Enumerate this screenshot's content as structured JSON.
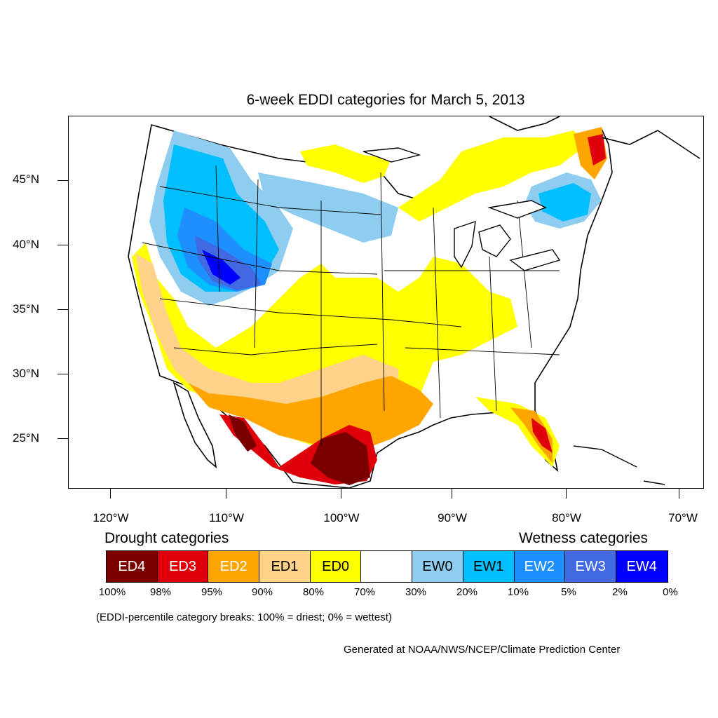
{
  "title": "6-week EDDI categories for March 5, 2013",
  "lat_labels": [
    "45°N",
    "40°N",
    "35°N",
    "30°N",
    "25°N"
  ],
  "lon_labels": [
    "120°W",
    "110°W",
    "100°W",
    "90°W",
    "80°W",
    "70°W"
  ],
  "legend": {
    "drought_heading": "Drought categories",
    "wetness_heading": "Wetness categories",
    "categories": [
      {
        "label": "ED4",
        "color": "#7a0000",
        "text_color": "#ffffff"
      },
      {
        "label": "ED3",
        "color": "#e0000b",
        "text_color": "#ffffff"
      },
      {
        "label": "ED2",
        "color": "#ffa500",
        "text_color": "#ffffff"
      },
      {
        "label": "ED1",
        "color": "#ffd28a",
        "text_color": "#000000"
      },
      {
        "label": "ED0",
        "color": "#ffff00",
        "text_color": "#000000"
      },
      {
        "label": "",
        "color": "#ffffff",
        "text_color": "#000000"
      },
      {
        "label": "EW0",
        "color": "#8ecdf0",
        "text_color": "#000000"
      },
      {
        "label": "EW1",
        "color": "#00bfff",
        "text_color": "#000000"
      },
      {
        "label": "EW2",
        "color": "#1e8fff",
        "text_color": "#ffffff"
      },
      {
        "label": "EW3",
        "color": "#4169e1",
        "text_color": "#ffffff"
      },
      {
        "label": "EW4",
        "color": "#0000ff",
        "text_color": "#ffffff"
      }
    ],
    "breaks": [
      "100%",
      "98%",
      "95%",
      "90%",
      "80%",
      "70%",
      "30%",
      "20%",
      "10%",
      "5%",
      "2%",
      "0%"
    ]
  },
  "note": "(EDDI-percentile category breaks: 100% = driest; 0% = wettest)",
  "credit": "Generated at NOAA/NWS/NCEP/Climate Prediction Center"
}
